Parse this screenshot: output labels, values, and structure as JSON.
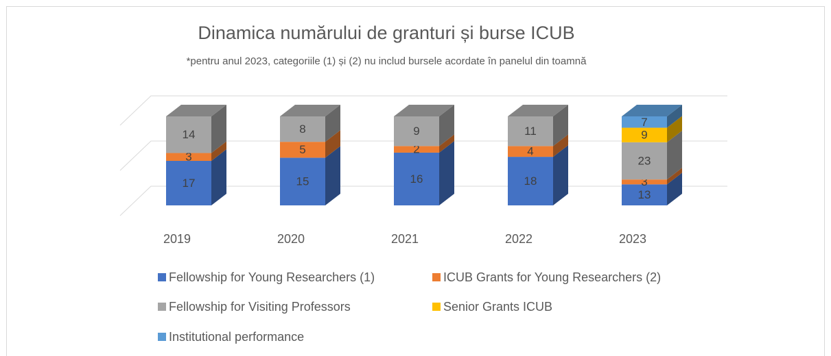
{
  "chart_data": {
    "type": "bar",
    "stacking": "percent",
    "title": "Dinamica numărului de granturi și burse ICUB",
    "subtitle": "*pentru anul 2023, categoriile (1) și (2) nu includ bursele acordate în panelul din toamnă",
    "categories": [
      "2019",
      "2020",
      "2021",
      "2022",
      "2023"
    ],
    "series": [
      {
        "name": "Fellowship for Young Researchers (1)",
        "color": "#4472c4",
        "values": [
          17,
          15,
          16,
          18,
          13
        ]
      },
      {
        "name": "ICUB Grants for Young Researchers (2)",
        "color": "#ed7d31",
        "values": [
          3,
          5,
          2,
          4,
          3
        ]
      },
      {
        "name": "Fellowship for Visiting Professors",
        "color": "#a5a5a5",
        "values": [
          14,
          8,
          9,
          11,
          23
        ]
      },
      {
        "name": "Senior Grants ICUB",
        "color": "#ffc000",
        "values": [
          null,
          null,
          null,
          null,
          9
        ]
      },
      {
        "name": "Institutional performance",
        "color": "#5b9bd5",
        "values": [
          null,
          null,
          null,
          null,
          7
        ]
      }
    ],
    "ylim": [
      0,
      100
    ],
    "yticks": [
      0,
      50,
      100
    ],
    "grid": true,
    "legend": "bottom"
  }
}
